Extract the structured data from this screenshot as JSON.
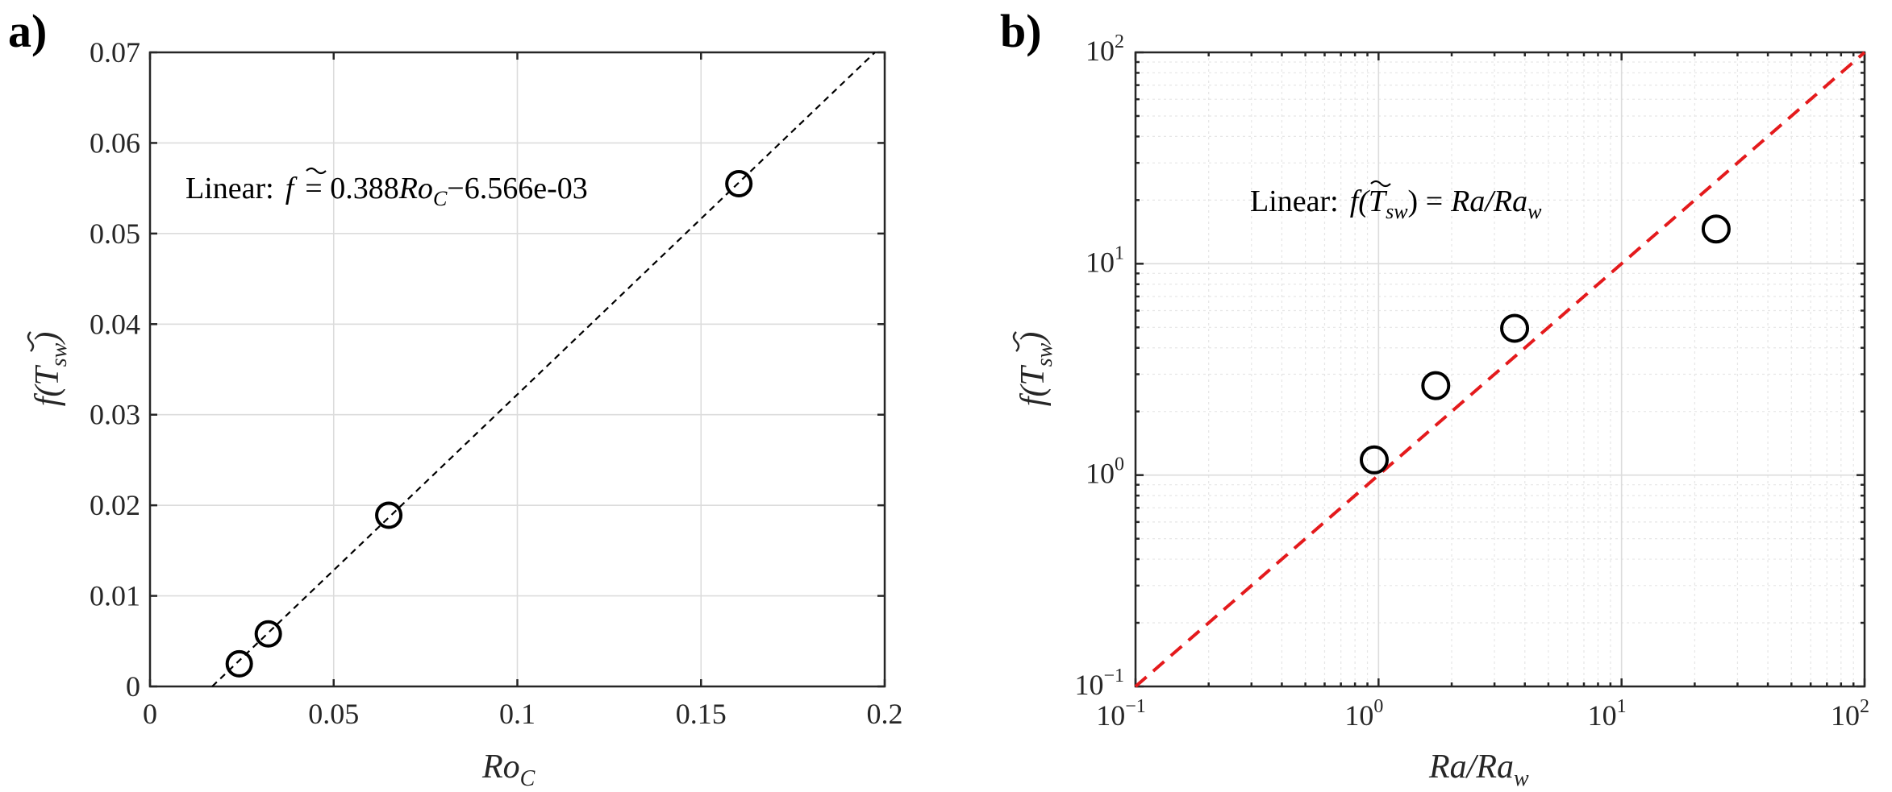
{
  "chart_data": [
    {
      "panel": "a)",
      "type": "scatter",
      "scale": "linear",
      "xlabel": "Ro",
      "xlabel_sub": "C",
      "ylabel": "f(T",
      "ylabel_sub": "sw",
      "ylabel_tail": ")",
      "xlim": [
        0,
        0.2
      ],
      "ylim": [
        0,
        0.07
      ],
      "xticks": [
        0,
        0.05,
        0.1,
        0.15,
        0.2
      ],
      "xtick_labels": [
        "0",
        "0.05",
        "0.1",
        "0.15",
        "0.2"
      ],
      "yticks": [
        0,
        0.01,
        0.02,
        0.03,
        0.04,
        0.05,
        0.06,
        0.07
      ],
      "ytick_labels": [
        "0",
        "0.01",
        "0.02",
        "0.03",
        "0.04",
        "0.05",
        "0.06",
        "0.07"
      ],
      "points": {
        "x": [
          0.0243,
          0.0322,
          0.065,
          0.1603
        ],
        "y": [
          0.0025,
          0.0058,
          0.0189,
          0.0555
        ]
      },
      "fit_line": {
        "slope": 0.388,
        "intercept": -0.006566,
        "style": "dashed",
        "color": "#000000"
      },
      "annotation": {
        "prefix": "Linear:",
        "lhs": "f",
        "eq": "= 0.388",
        "var": "Ro",
        "var_sub": "C",
        "tail": "−6.566e-03"
      }
    },
    {
      "panel": "b)",
      "type": "scatter",
      "scale": "log",
      "xlabel": "Ra/Ra",
      "xlabel_sub": "w",
      "ylabel": "f(T",
      "ylabel_sub": "sw",
      "ylabel_tail": ")",
      "xlim": [
        0.1,
        100
      ],
      "ylim": [
        0.1,
        100
      ],
      "tick_base": "10",
      "xtick_exps": [
        "−1",
        "0",
        "1",
        "2"
      ],
      "ytick_exps": [
        "−1",
        "0",
        "1",
        "2"
      ],
      "points": {
        "x": [
          0.96,
          1.72,
          3.63,
          24.5
        ],
        "y": [
          1.18,
          2.65,
          4.95,
          14.6
        ]
      },
      "fit_line": {
        "type": "identity",
        "style": "dashed",
        "color": "#e41a1c"
      },
      "annotation": {
        "prefix": "Linear:",
        "lhs": "f(T",
        "lhs_sub": "sw",
        "eq": ") =",
        "rhs": "Ra/Ra",
        "rhs_sub": "w"
      }
    }
  ]
}
